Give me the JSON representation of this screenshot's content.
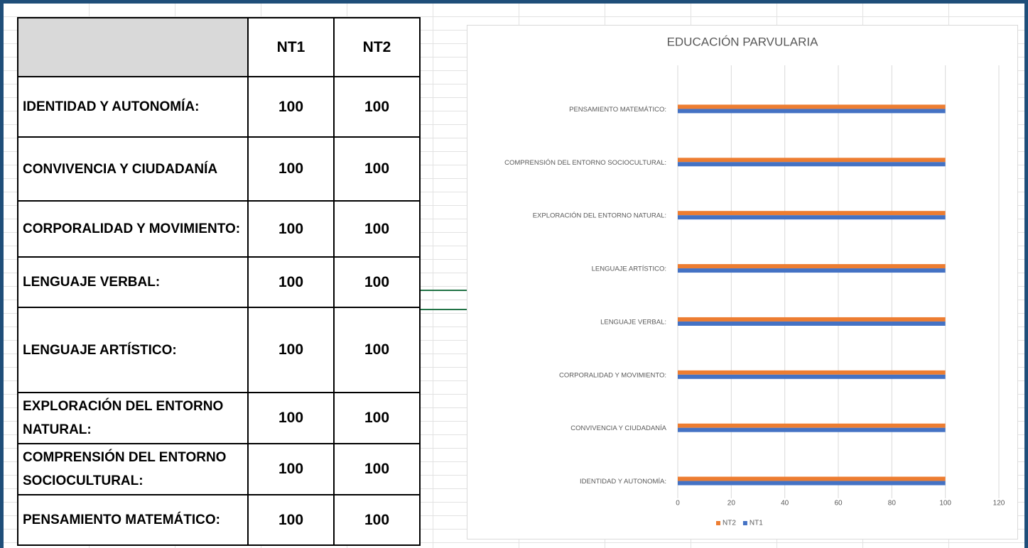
{
  "table": {
    "header": [
      "NT1",
      "NT2"
    ],
    "rows": [
      [
        "IDENTIDAD Y AUTONOMÍA:",
        100,
        100
      ],
      [
        "CONVIVENCIA Y CIUDADANÍA",
        100,
        100
      ],
      [
        "CORPORALIDAD Y MOVIMIENTO:",
        100,
        100
      ],
      [
        "LENGUAJE VERBAL:",
        100,
        100
      ],
      [
        "LENGUAJE ARTÍSTICO:",
        100,
        100
      ],
      [
        "EXPLORACIÓN DEL ENTORNO NATURAL:",
        100,
        100
      ],
      [
        "COMPRENSIÓN DEL ENTORNO SOCIOCULTURAL:",
        100,
        100
      ],
      [
        "PENSAMIENTO MATEMÁTICO:",
        100,
        100
      ]
    ]
  },
  "chart_data": {
    "type": "barh",
    "title": "EDUCACIÓN PARVULARIA",
    "categories": [
      "IDENTIDAD Y AUTONOMÍA:",
      "CONVIVENCIA Y CIUDADANÍA",
      "CORPORALIDAD Y MOVIMIENTO:",
      "LENGUAJE VERBAL:",
      "LENGUAJE ARTÍSTICO:",
      "EXPLORACIÓN DEL ENTORNO NATURAL:",
      "COMPRENSIÓN DEL ENTORNO SOCIOCULTURAL:",
      "PENSAMIENTO MATEMÁTICO:"
    ],
    "series": [
      {
        "name": "NT2",
        "color": "#ed7d31",
        "values": [
          100,
          100,
          100,
          100,
          100,
          100,
          100,
          100
        ]
      },
      {
        "name": "NT1",
        "color": "#4472c4",
        "values": [
          100,
          100,
          100,
          100,
          100,
          100,
          100,
          100
        ]
      }
    ],
    "xlim": [
      0,
      120
    ],
    "xticks": [
      0,
      20,
      40,
      60,
      80,
      100,
      120
    ],
    "grid": true,
    "legend": "bottom"
  }
}
